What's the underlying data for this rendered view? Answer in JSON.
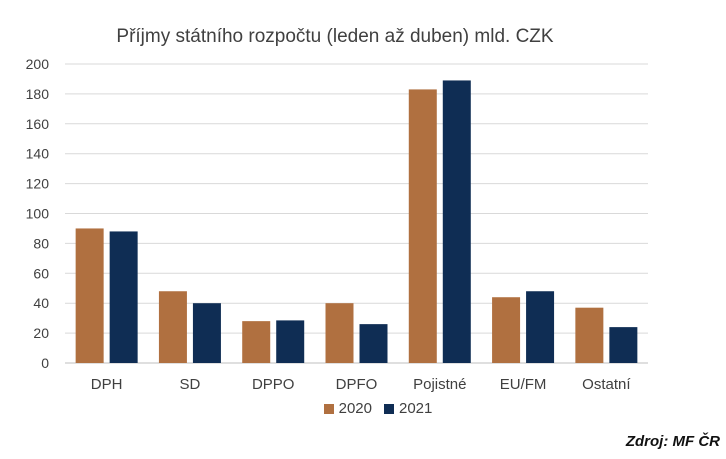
{
  "chart_data": {
    "type": "bar",
    "title": "Příjmy státního rozpočtu (leden až duben) mld. CZK",
    "categories": [
      "DPH",
      "SD",
      "DPPO",
      "DPFO",
      "Pojistné",
      "EU/FM",
      "Ostatní"
    ],
    "series": [
      {
        "name": "2020",
        "color": "#b07040",
        "values": [
          90,
          48,
          28,
          40,
          183,
          44,
          37
        ]
      },
      {
        "name": "2021",
        "color": "#0f2d54",
        "values": [
          88,
          40,
          28.5,
          26,
          189,
          48,
          24
        ]
      }
    ],
    "ylim": [
      0,
      200
    ],
    "yticks": [
      "0",
      "20",
      "40",
      "60",
      "80",
      "100",
      "120",
      "140",
      "160",
      "180",
      "200"
    ],
    "grid": true,
    "legend_position": "bottom"
  },
  "source": "Zdroj: MF ČR"
}
